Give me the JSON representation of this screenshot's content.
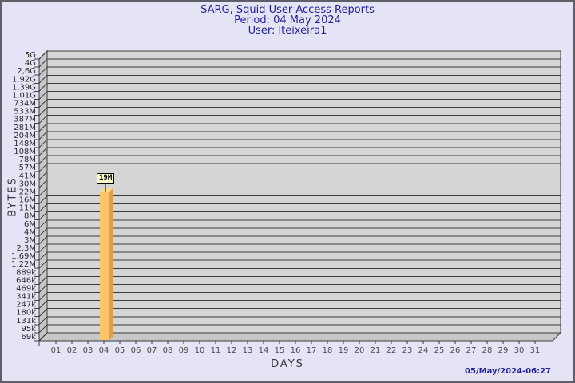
{
  "page": {
    "background": "#e4e4f6",
    "border_color": "#5f5f6a"
  },
  "chart_data": {
    "type": "bar",
    "title": "SARG, Squid User Access Reports",
    "period_line": "Period: 04 May 2024",
    "user_line": "User: lteixeira1",
    "xlabel": "DAYS",
    "ylabel": "BYTES",
    "y_scale": "logarithmic-custom-ticks",
    "x_categories": [
      "01",
      "02",
      "03",
      "04",
      "05",
      "06",
      "07",
      "08",
      "09",
      "10",
      "11",
      "12",
      "13",
      "14",
      "15",
      "16",
      "17",
      "18",
      "19",
      "20",
      "21",
      "22",
      "23",
      "24",
      "25",
      "26",
      "27",
      "28",
      "29",
      "30",
      "31"
    ],
    "y_ticks": [
      "5G",
      "4G",
      "2,6G",
      "1,92G",
      "1,39G",
      "1,01G",
      "734M",
      "533M",
      "387M",
      "281M",
      "204M",
      "148M",
      "108M",
      "78M",
      "57M",
      "41M",
      "30M",
      "22M",
      "16M",
      "11M",
      "8M",
      "6M",
      "4M",
      "3M",
      "2,3M",
      "1,69M",
      "1,22M",
      "889k",
      "646k",
      "469k",
      "341k",
      "247k",
      "180k",
      "131k",
      "95k",
      "69k"
    ],
    "bars": [
      {
        "day": "04",
        "value_label": "19M",
        "value_bytes": 19000000
      }
    ],
    "colors": {
      "title_text": "#1f1f9f",
      "plot_bg": "#d5d5d5",
      "wall": "#c7c7c7",
      "grid_line": "#3c3c3c",
      "bar_front": "#fbc468",
      "bar_side": "#dda04a",
      "bar_top": "#fcd78e",
      "value_label_bg": "#ffffcc"
    }
  },
  "footer": {
    "timestamp": "05/May/2024-06:27"
  }
}
